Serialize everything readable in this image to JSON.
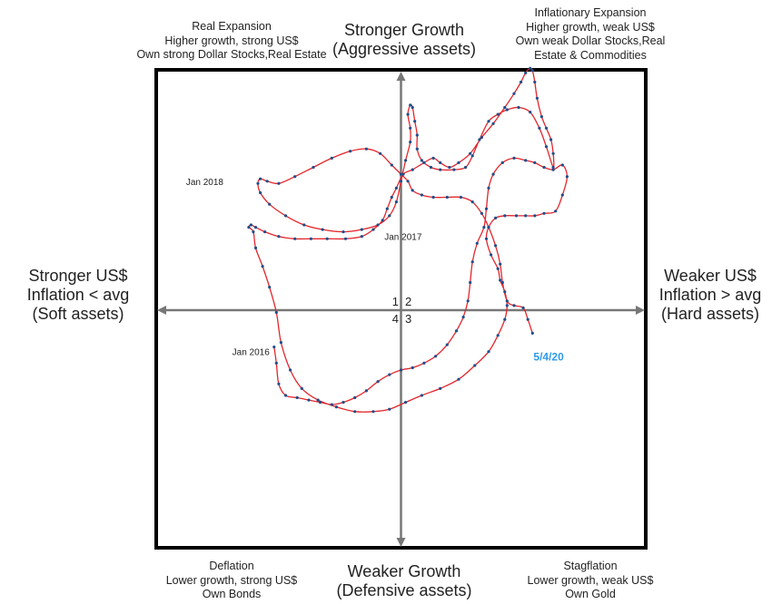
{
  "quadrant_labels": {
    "top_left": [
      "Real Expansion",
      "Higher growth, strong US$",
      "Own strong Dollar Stocks,Real Estate"
    ],
    "top_right": [
      "Inflationary Expansion",
      "Higher growth, weak US$",
      "Own weak Dollar Stocks,Real",
      "Estate & Commodities"
    ],
    "bottom_left": [
      "Deflation",
      "Lower growth, strong US$",
      "Own Bonds"
    ],
    "bottom_right": [
      "Stagflation",
      "Lower growth, weak US$",
      "Own Gold"
    ]
  },
  "axis_titles": {
    "top": [
      "Stronger Growth",
      "(Aggressive assets)"
    ],
    "bottom": [
      "Weaker Growth",
      "(Defensive assets)"
    ],
    "left": [
      "Stronger US$",
      "Inflation < avg",
      "(Soft assets)"
    ],
    "right": [
      "Weaker US$",
      "Inflation > avg",
      "(Hard assets)"
    ]
  },
  "quadrant_numbers": {
    "q1": "1",
    "q2": "2",
    "q3": "3",
    "q4": "4"
  },
  "colors": {
    "line": "#e3262c",
    "points": "#1f4e8c",
    "axis": "#777777",
    "frame": "#000000",
    "end_label": "#2e9be6"
  },
  "chart_data": {
    "type": "scatter",
    "x": {
      "min": -1,
      "max": 1,
      "negative_label": "Stronger US$",
      "positive_label": "Weaker US$"
    },
    "y": {
      "min": -1,
      "max": 1,
      "negative_label": "Weaker Growth",
      "positive_label": "Stronger Growth"
    },
    "grid": false,
    "connected": true,
    "annotations": [
      {
        "text": "Jan 2016",
        "x": -0.55,
        "y": -0.18
      },
      {
        "text": "Jan 2017",
        "x": 0.11,
        "y": 0.32
      },
      {
        "text": "Jan 2018",
        "x": -0.75,
        "y": 0.56
      },
      {
        "text": "5/4/20",
        "x": 0.59,
        "y": -0.1,
        "highlight": true
      }
    ],
    "points": [
      [
        -0.55,
        -0.16
      ],
      [
        -0.54,
        -0.23
      ],
      [
        -0.53,
        -0.32
      ],
      [
        -0.5,
        -0.37
      ],
      [
        -0.45,
        -0.38
      ],
      [
        -0.4,
        -0.39
      ],
      [
        -0.35,
        -0.4
      ],
      [
        -0.3,
        -0.41
      ],
      [
        -0.25,
        -0.4
      ],
      [
        -0.2,
        -0.38
      ],
      [
        -0.15,
        -0.35
      ],
      [
        -0.1,
        -0.31
      ],
      [
        -0.05,
        -0.28
      ],
      [
        0.0,
        -0.26
      ],
      [
        0.05,
        -0.25
      ],
      [
        0.1,
        -0.23
      ],
      [
        0.15,
        -0.2
      ],
      [
        0.2,
        -0.15
      ],
      [
        0.24,
        -0.09
      ],
      [
        0.27,
        -0.03
      ],
      [
        0.29,
        0.04
      ],
      [
        0.3,
        0.12
      ],
      [
        0.31,
        0.21
      ],
      [
        0.33,
        0.29
      ],
      [
        0.36,
        0.36
      ],
      [
        0.37,
        0.44
      ],
      [
        0.38,
        0.53
      ],
      [
        0.4,
        0.59
      ],
      [
        0.44,
        0.64
      ],
      [
        0.49,
        0.66
      ],
      [
        0.54,
        0.65
      ],
      [
        0.58,
        0.64
      ],
      [
        0.62,
        0.62
      ],
      [
        0.66,
        0.61
      ],
      [
        0.7,
        0.63
      ],
      [
        0.72,
        0.58
      ],
      [
        0.7,
        0.5
      ],
      [
        0.67,
        0.43
      ],
      [
        0.62,
        0.42
      ],
      [
        0.58,
        0.41
      ],
      [
        0.54,
        0.41
      ],
      [
        0.5,
        0.41
      ],
      [
        0.45,
        0.41
      ],
      [
        0.41,
        0.4
      ],
      [
        0.38,
        0.36
      ],
      [
        0.37,
        0.31
      ],
      [
        0.39,
        0.24
      ],
      [
        0.42,
        0.18
      ],
      [
        0.43,
        0.13
      ],
      [
        0.45,
        0.08
      ],
      [
        0.46,
        0.02
      ],
      [
        0.45,
        -0.04
      ],
      [
        0.42,
        -0.11
      ],
      [
        0.38,
        -0.18
      ],
      [
        0.32,
        -0.24
      ],
      [
        0.25,
        -0.3
      ],
      [
        0.17,
        -0.34
      ],
      [
        0.09,
        -0.37
      ],
      [
        0.02,
        -0.4
      ],
      [
        -0.05,
        -0.43
      ],
      [
        -0.12,
        -0.44
      ],
      [
        -0.2,
        -0.44
      ],
      [
        -0.28,
        -0.42
      ],
      [
        -0.36,
        -0.39
      ],
      [
        -0.43,
        -0.34
      ],
      [
        -0.48,
        -0.26
      ],
      [
        -0.52,
        -0.14
      ],
      [
        -0.54,
        -0.01
      ],
      [
        -0.57,
        0.1
      ],
      [
        -0.6,
        0.19
      ],
      [
        -0.63,
        0.27
      ],
      [
        -0.64,
        0.34
      ],
      [
        -0.66,
        0.36
      ],
      [
        -0.65,
        0.37
      ],
      [
        -0.63,
        0.36
      ],
      [
        -0.59,
        0.34
      ],
      [
        -0.53,
        0.32
      ],
      [
        -0.46,
        0.31
      ],
      [
        -0.39,
        0.31
      ],
      [
        -0.32,
        0.31
      ],
      [
        -0.24,
        0.31
      ],
      [
        -0.17,
        0.32
      ],
      [
        -0.12,
        0.35
      ],
      [
        -0.08,
        0.39
      ],
      [
        -0.06,
        0.44
      ],
      [
        -0.04,
        0.49
      ],
      [
        -0.02,
        0.53
      ],
      [
        0.01,
        0.59
      ],
      [
        0.05,
        0.61
      ],
      [
        0.1,
        0.64
      ],
      [
        0.14,
        0.66
      ],
      [
        0.17,
        0.64
      ],
      [
        0.21,
        0.62
      ],
      [
        0.25,
        0.64
      ],
      [
        0.3,
        0.68
      ],
      [
        0.35,
        0.75
      ],
      [
        0.4,
        0.81
      ],
      [
        0.45,
        0.88
      ],
      [
        0.49,
        0.94
      ],
      [
        0.52,
        0.99
      ],
      [
        0.54,
        1.03
      ],
      [
        0.56,
        1.05
      ],
      [
        0.57,
        1.04
      ],
      [
        0.58,
        0.99
      ],
      [
        0.59,
        0.92
      ],
      [
        0.61,
        0.84
      ],
      [
        0.63,
        0.79
      ],
      [
        0.65,
        0.74
      ],
      [
        0.66,
        0.68
      ],
      [
        0.66,
        0.62
      ],
      [
        0.63,
        0.71
      ],
      [
        0.6,
        0.79
      ],
      [
        0.56,
        0.86
      ],
      [
        0.51,
        0.88
      ],
      [
        0.46,
        0.87
      ],
      [
        0.42,
        0.85
      ],
      [
        0.38,
        0.82
      ],
      [
        0.34,
        0.74
      ],
      [
        0.31,
        0.67
      ],
      [
        0.28,
        0.62
      ],
      [
        0.23,
        0.61
      ],
      [
        0.17,
        0.61
      ],
      [
        0.13,
        0.62
      ],
      [
        0.09,
        0.65
      ],
      [
        0.07,
        0.7
      ],
      [
        0.07,
        0.76
      ],
      [
        0.06,
        0.82
      ],
      [
        0.05,
        0.88
      ],
      [
        0.04,
        0.89
      ],
      [
        0.03,
        0.85
      ],
      [
        0.04,
        0.79
      ],
      [
        0.04,
        0.73
      ],
      [
        0.02,
        0.65
      ],
      [
        0.0,
        0.56
      ],
      [
        -0.02,
        0.47
      ],
      [
        -0.05,
        0.41
      ],
      [
        -0.1,
        0.37
      ],
      [
        -0.17,
        0.35
      ],
      [
        -0.25,
        0.34
      ],
      [
        -0.34,
        0.35
      ],
      [
        -0.42,
        0.37
      ],
      [
        -0.5,
        0.41
      ],
      [
        -0.57,
        0.46
      ],
      [
        -0.61,
        0.51
      ],
      [
        -0.62,
        0.55
      ],
      [
        -0.61,
        0.57
      ],
      [
        -0.58,
        0.56
      ],
      [
        -0.53,
        0.55
      ],
      [
        -0.46,
        0.58
      ],
      [
        -0.38,
        0.62
      ],
      [
        -0.3,
        0.66
      ],
      [
        -0.22,
        0.69
      ],
      [
        -0.15,
        0.7
      ],
      [
        -0.09,
        0.68
      ],
      [
        -0.04,
        0.63
      ],
      [
        0.0,
        0.59
      ],
      [
        0.03,
        0.56
      ],
      [
        0.05,
        0.52
      ],
      [
        0.09,
        0.5
      ],
      [
        0.14,
        0.49
      ],
      [
        0.2,
        0.49
      ],
      [
        0.26,
        0.49
      ],
      [
        0.31,
        0.47
      ],
      [
        0.35,
        0.42
      ],
      [
        0.38,
        0.36
      ],
      [
        0.41,
        0.28
      ],
      [
        0.43,
        0.2
      ],
      [
        0.44,
        0.12
      ],
      [
        0.46,
        0.04
      ],
      [
        0.49,
        0.02
      ],
      [
        0.53,
        0.01
      ],
      [
        0.55,
        -0.04
      ],
      [
        0.57,
        -0.1
      ]
    ]
  }
}
